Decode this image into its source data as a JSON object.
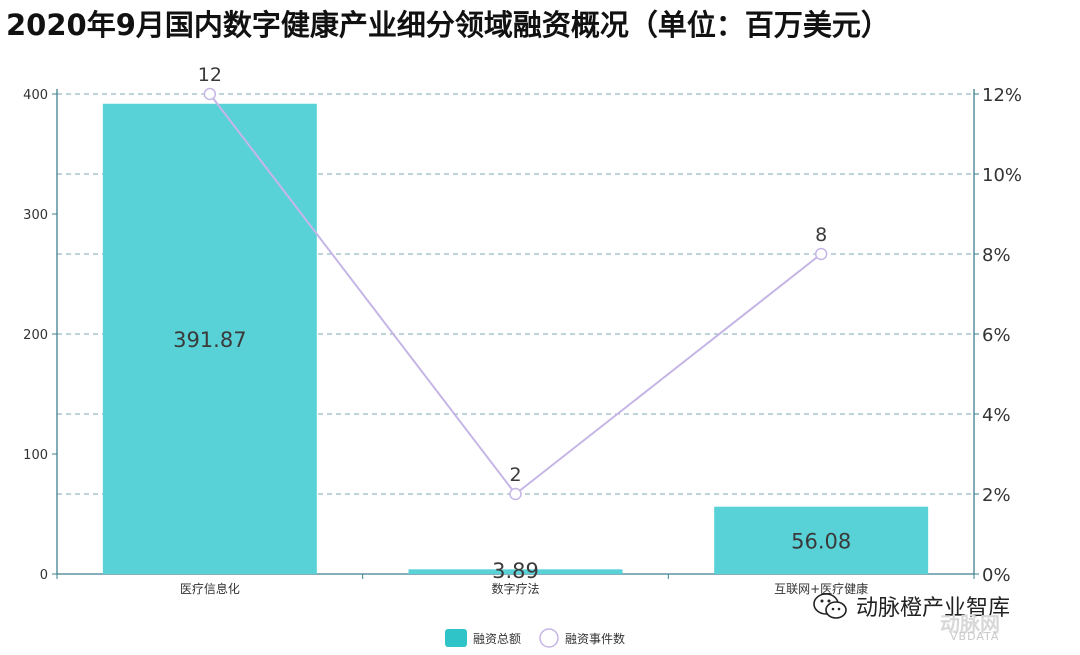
{
  "title": "2020年9月国内数字健康产业细分领域融资概况（单位：百万美元）",
  "chart_data": {
    "type": "bar",
    "categories": [
      "医疗信息化",
      "数字疗法",
      "互联网+医疗健康"
    ],
    "series": [
      {
        "name": "融资总额",
        "kind": "bar",
        "axis": "left",
        "color": "#58D1D7",
        "values": [
          391.87,
          3.89,
          56.08
        ]
      },
      {
        "name": "融资事件数",
        "kind": "line",
        "axis": "right",
        "color": "#C6B6E6",
        "values": [
          12,
          2,
          8
        ]
      }
    ],
    "y_left": {
      "ylim": [
        0,
        400
      ],
      "ticks": [
        0,
        100,
        200,
        300,
        400
      ]
    },
    "y_right": {
      "ylim": [
        0,
        12
      ],
      "ticks": [
        0,
        2,
        4,
        6,
        8,
        10,
        12
      ],
      "tick_labels": [
        "0%",
        "2%",
        "4%",
        "6%",
        "8%",
        "10%",
        "12%"
      ]
    },
    "bar_labels": [
      "391.87",
      "3.89",
      "56.08"
    ],
    "point_labels": [
      "12",
      "2",
      "8"
    ],
    "grid": "dashed horizontal",
    "legend": {
      "placement": "bottom-center",
      "items": [
        "融资总额",
        "融资事件数"
      ]
    }
  },
  "watermark": {
    "text": "动脉橙产业智库",
    "brand": "动脉网",
    "sub": "VBDATA",
    "icon": "wechat-icon"
  }
}
